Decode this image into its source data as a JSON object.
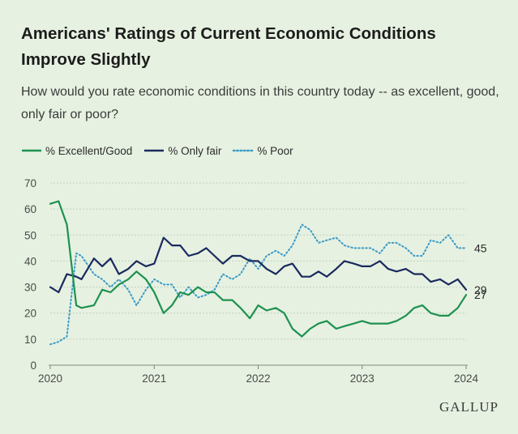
{
  "title": "Americans' Ratings of Current Economic Conditions Improve Slightly",
  "subtitle": "How would you rate economic conditions in this country today -- as excellent, good, only fair or poor?",
  "brand": "GALLUP",
  "chart_data": {
    "type": "line",
    "title": "Americans' Ratings of Current Economic Conditions Improve Slightly",
    "xlabel": "",
    "ylabel": "",
    "xlim": [
      2020.0,
      2024.0
    ],
    "ylim": [
      0,
      70
    ],
    "y_ticks": [
      0,
      10,
      20,
      30,
      40,
      50,
      60,
      70
    ],
    "x_ticks": [
      "2020",
      "2021",
      "2022",
      "2023",
      "2024"
    ],
    "grid": true,
    "legend_position": "top-left",
    "series": [
      {
        "name": "% Excellent/Good",
        "color": "#1e9150",
        "style": "solid",
        "end_label": "27",
        "points": [
          [
            2020.0,
            62
          ],
          [
            2020.08,
            63
          ],
          [
            2020.16,
            54
          ],
          [
            2020.25,
            23
          ],
          [
            2020.3,
            22
          ],
          [
            2020.42,
            23
          ],
          [
            2020.5,
            29
          ],
          [
            2020.58,
            28
          ],
          [
            2020.66,
            31
          ],
          [
            2020.75,
            33
          ],
          [
            2020.83,
            36
          ],
          [
            2020.92,
            33
          ],
          [
            2021.0,
            28
          ],
          [
            2021.09,
            20
          ],
          [
            2021.17,
            23
          ],
          [
            2021.25,
            28
          ],
          [
            2021.33,
            27
          ],
          [
            2021.42,
            30
          ],
          [
            2021.5,
            28
          ],
          [
            2021.58,
            28
          ],
          [
            2021.66,
            25
          ],
          [
            2021.75,
            25
          ],
          [
            2021.83,
            22
          ],
          [
            2021.92,
            18
          ],
          [
            2022.0,
            23
          ],
          [
            2022.08,
            21
          ],
          [
            2022.17,
            22
          ],
          [
            2022.25,
            20
          ],
          [
            2022.33,
            14
          ],
          [
            2022.42,
            11
          ],
          [
            2022.5,
            14
          ],
          [
            2022.58,
            16
          ],
          [
            2022.66,
            17
          ],
          [
            2022.75,
            14
          ],
          [
            2022.83,
            15
          ],
          [
            2022.92,
            16
          ],
          [
            2023.0,
            17
          ],
          [
            2023.08,
            16
          ],
          [
            2023.17,
            16
          ],
          [
            2023.25,
            16
          ],
          [
            2023.33,
            17
          ],
          [
            2023.42,
            19
          ],
          [
            2023.5,
            22
          ],
          [
            2023.58,
            23
          ],
          [
            2023.66,
            20
          ],
          [
            2023.75,
            19
          ],
          [
            2023.83,
            19
          ],
          [
            2023.92,
            22
          ],
          [
            2024.0,
            27
          ]
        ]
      },
      {
        "name": "% Only fair",
        "color": "#1a2a5e",
        "style": "solid",
        "end_label": "29",
        "points": [
          [
            2020.0,
            30
          ],
          [
            2020.08,
            28
          ],
          [
            2020.16,
            35
          ],
          [
            2020.25,
            34
          ],
          [
            2020.3,
            33
          ],
          [
            2020.42,
            41
          ],
          [
            2020.5,
            38
          ],
          [
            2020.58,
            41
          ],
          [
            2020.66,
            35
          ],
          [
            2020.75,
            37
          ],
          [
            2020.83,
            40
          ],
          [
            2020.92,
            38
          ],
          [
            2021.0,
            39
          ],
          [
            2021.09,
            49
          ],
          [
            2021.17,
            46
          ],
          [
            2021.25,
            46
          ],
          [
            2021.33,
            42
          ],
          [
            2021.42,
            43
          ],
          [
            2021.5,
            45
          ],
          [
            2021.58,
            42
          ],
          [
            2021.66,
            39
          ],
          [
            2021.75,
            42
          ],
          [
            2021.83,
            42
          ],
          [
            2021.92,
            40
          ],
          [
            2022.0,
            40
          ],
          [
            2022.08,
            37
          ],
          [
            2022.17,
            35
          ],
          [
            2022.25,
            38
          ],
          [
            2022.33,
            39
          ],
          [
            2022.42,
            34
          ],
          [
            2022.5,
            34
          ],
          [
            2022.58,
            36
          ],
          [
            2022.66,
            34
          ],
          [
            2022.75,
            37
          ],
          [
            2022.83,
            40
          ],
          [
            2022.92,
            39
          ],
          [
            2023.0,
            38
          ],
          [
            2023.08,
            38
          ],
          [
            2023.17,
            40
          ],
          [
            2023.25,
            37
          ],
          [
            2023.33,
            36
          ],
          [
            2023.42,
            37
          ],
          [
            2023.5,
            35
          ],
          [
            2023.58,
            35
          ],
          [
            2023.66,
            32
          ],
          [
            2023.75,
            33
          ],
          [
            2023.83,
            31
          ],
          [
            2023.92,
            33
          ],
          [
            2024.0,
            29
          ]
        ]
      },
      {
        "name": "% Poor",
        "color": "#3a9bc8",
        "style": "dotted",
        "end_label": "45",
        "points": [
          [
            2020.0,
            8
          ],
          [
            2020.08,
            9
          ],
          [
            2020.16,
            11
          ],
          [
            2020.25,
            43
          ],
          [
            2020.3,
            42
          ],
          [
            2020.42,
            35
          ],
          [
            2020.5,
            33
          ],
          [
            2020.58,
            30
          ],
          [
            2020.66,
            33
          ],
          [
            2020.75,
            29
          ],
          [
            2020.83,
            23
          ],
          [
            2020.92,
            29
          ],
          [
            2021.0,
            33
          ],
          [
            2021.09,
            31
          ],
          [
            2021.17,
            31
          ],
          [
            2021.25,
            26
          ],
          [
            2021.33,
            30
          ],
          [
            2021.42,
            26
          ],
          [
            2021.5,
            27
          ],
          [
            2021.58,
            29
          ],
          [
            2021.66,
            35
          ],
          [
            2021.75,
            33
          ],
          [
            2021.83,
            35
          ],
          [
            2021.92,
            41
          ],
          [
            2022.0,
            37
          ],
          [
            2022.08,
            42
          ],
          [
            2022.17,
            44
          ],
          [
            2022.25,
            42
          ],
          [
            2022.33,
            46
          ],
          [
            2022.42,
            54
          ],
          [
            2022.5,
            52
          ],
          [
            2022.58,
            47
          ],
          [
            2022.66,
            48
          ],
          [
            2022.75,
            49
          ],
          [
            2022.83,
            46
          ],
          [
            2022.92,
            45
          ],
          [
            2023.0,
            45
          ],
          [
            2023.08,
            45
          ],
          [
            2023.17,
            43
          ],
          [
            2023.25,
            47
          ],
          [
            2023.33,
            47
          ],
          [
            2023.42,
            45
          ],
          [
            2023.5,
            42
          ],
          [
            2023.58,
            42
          ],
          [
            2023.66,
            48
          ],
          [
            2023.75,
            47
          ],
          [
            2023.83,
            50
          ],
          [
            2023.92,
            45
          ],
          [
            2024.0,
            45
          ]
        ]
      }
    ]
  }
}
